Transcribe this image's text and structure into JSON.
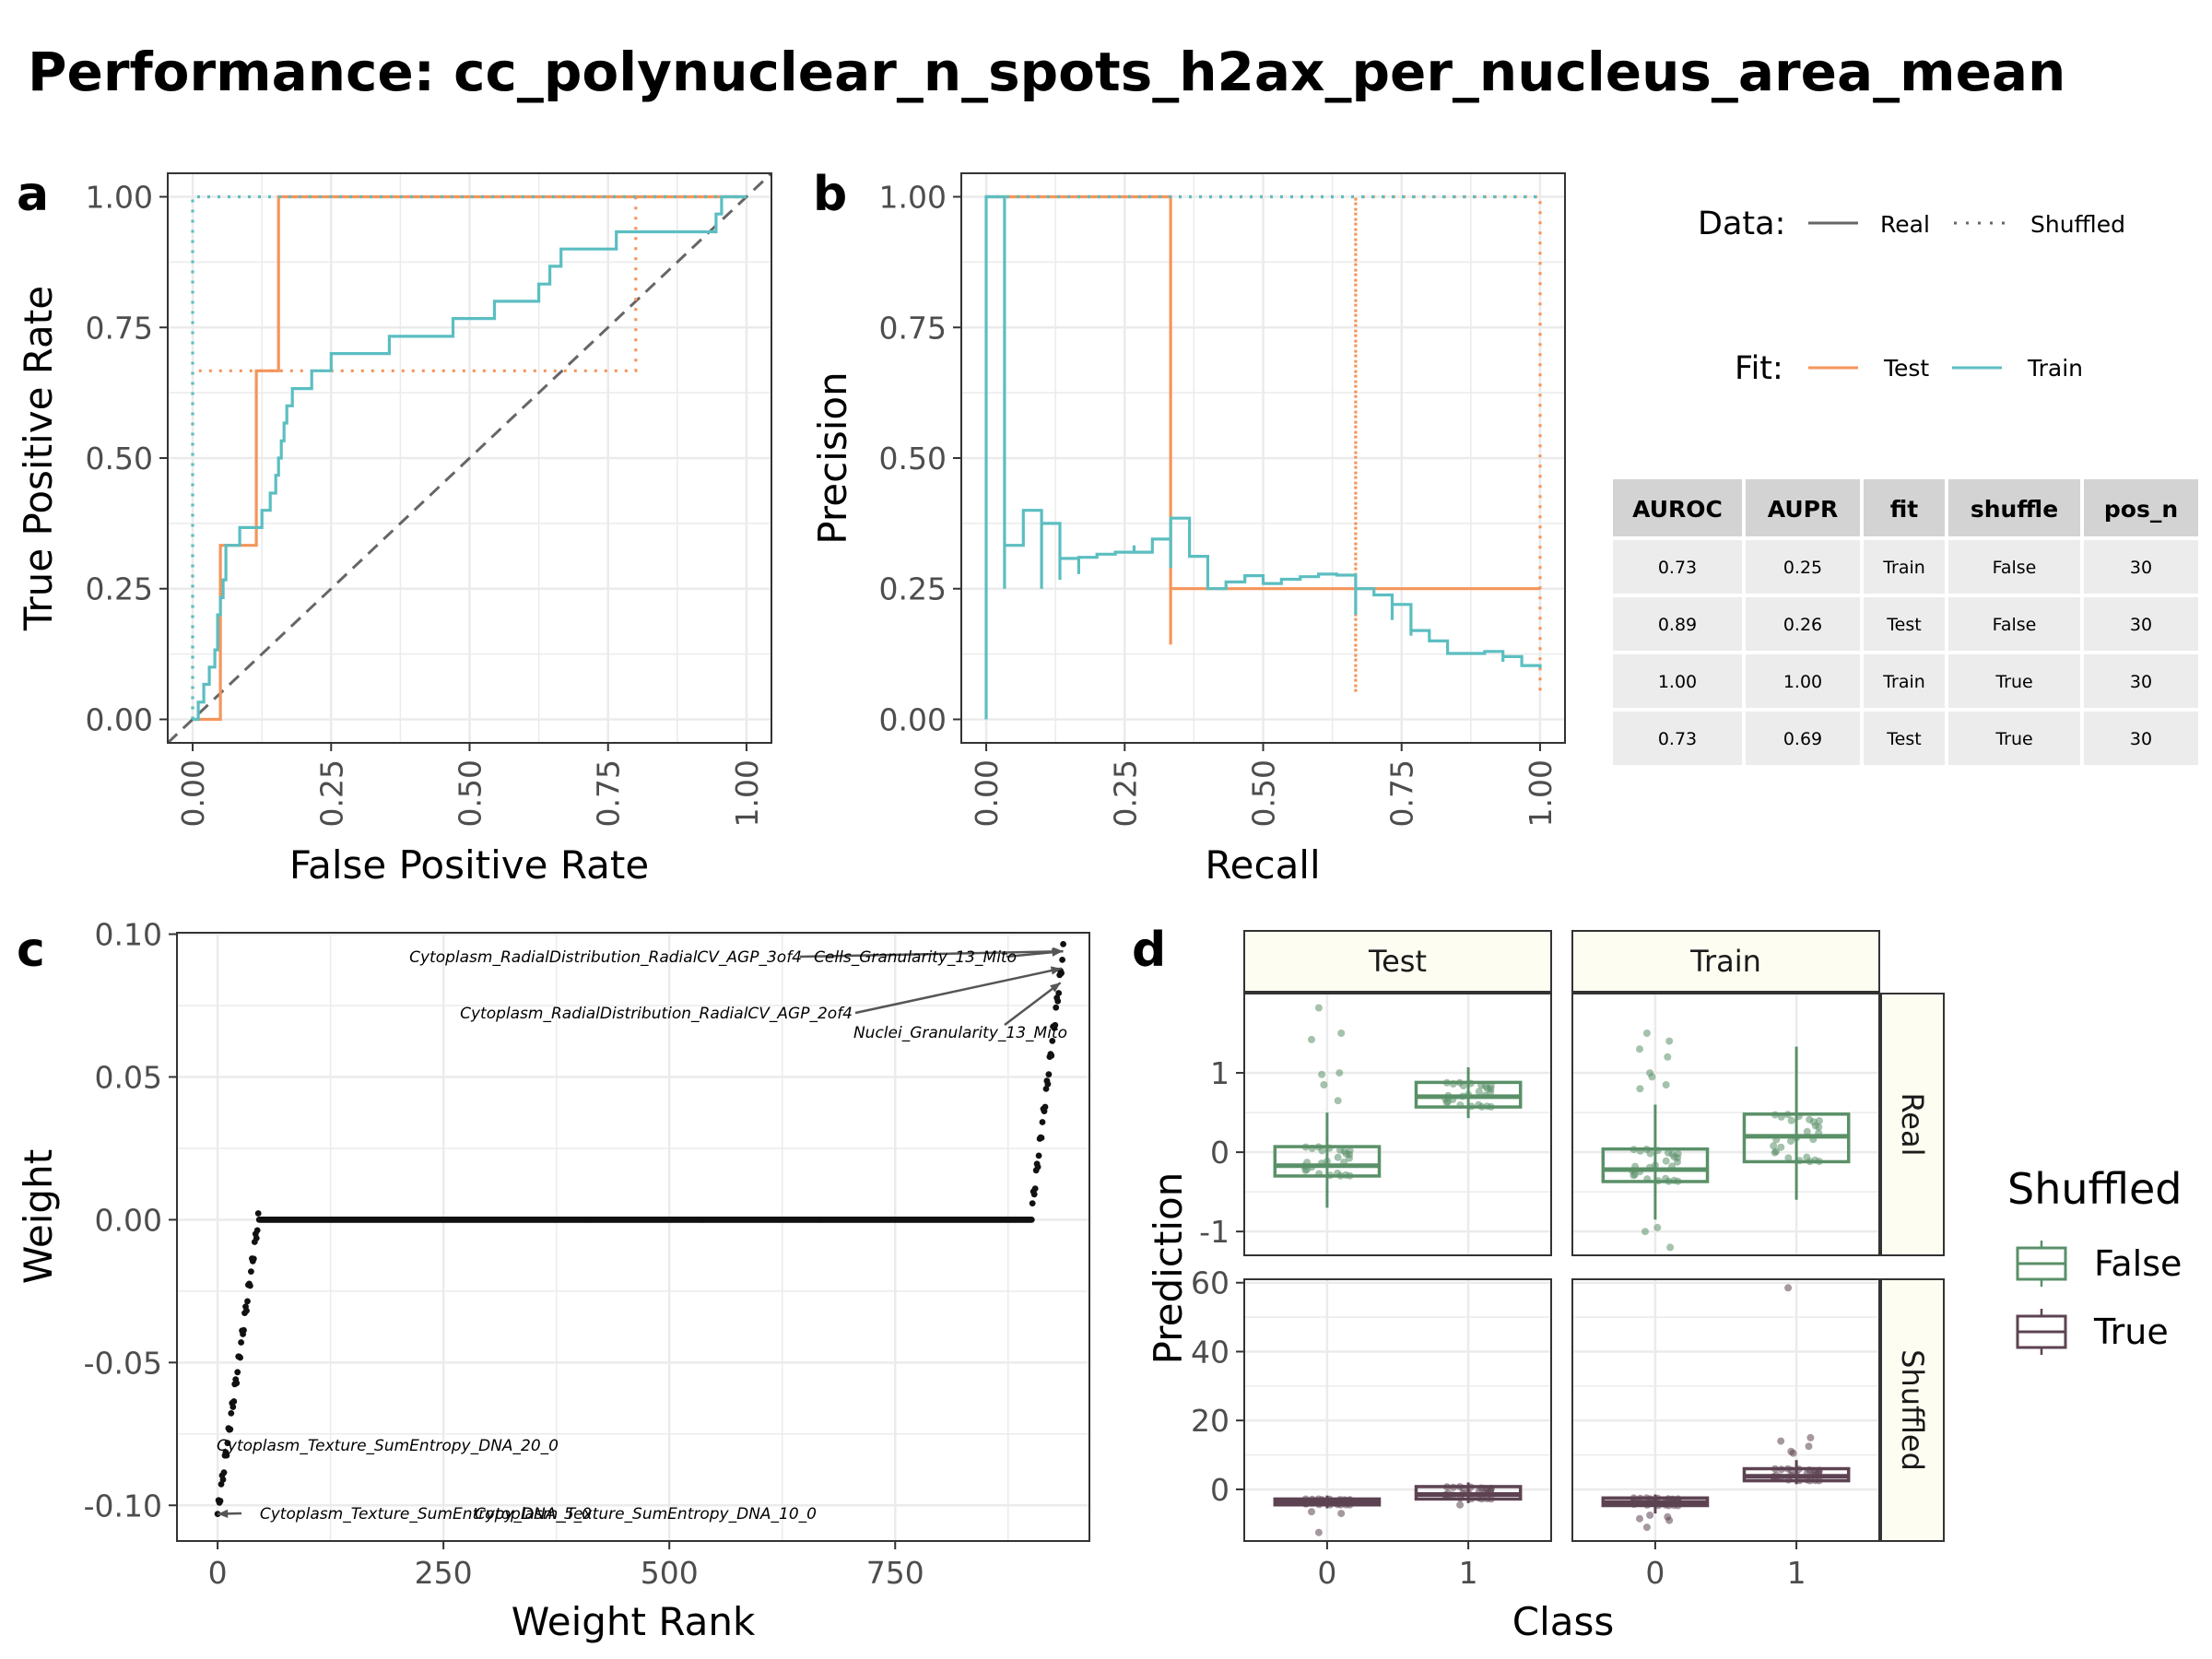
{
  "page": {
    "title": "Performance: cc_polynuclear_n_spots_h2ax_per_nucleus_area_mean"
  },
  "colors": {
    "test": "#f4955b",
    "train": "#5bbec1",
    "shuffled_false": "#5a9068",
    "shuffled_true": "#5d4352",
    "grid": "#ebebeb",
    "strip_fill": "#fdfdf2",
    "table_header": "#d3d3d3",
    "table_row": "#ececec"
  },
  "legend": {
    "data_title": "Data:",
    "data_real": "Real",
    "data_shuffled": "Shuffled",
    "fit_title": "Fit:",
    "fit_test": "Test",
    "fit_train": "Train",
    "shuffled_title": "Shuffled",
    "shuffled_false": "False",
    "shuffled_true": "True"
  },
  "table": {
    "headers": [
      "AUROC",
      "AUPR",
      "fit",
      "shuffle",
      "pos_n"
    ],
    "rows": [
      [
        "0.73",
        "0.25",
        "Train",
        "False",
        "30"
      ],
      [
        "0.89",
        "0.26",
        "Test",
        "False",
        "30"
      ],
      [
        "1.00",
        "1.00",
        "Train",
        "True",
        "30"
      ],
      [
        "0.73",
        "0.69",
        "Test",
        "True",
        "30"
      ]
    ]
  },
  "chart_data": [
    {
      "panel": "a",
      "type": "line",
      "xlabel": "False Positive Rate",
      "ylabel": "True Positive Rate",
      "xlim": [
        0,
        1
      ],
      "ylim": [
        0,
        1
      ],
      "x_ticks": [
        "0.00",
        "0.25",
        "0.50",
        "0.75",
        "1.00"
      ],
      "y_ticks": [
        "0.00",
        "0.25",
        "0.50",
        "0.75",
        "1.00"
      ],
      "diagonal": true,
      "series": [
        {
          "fit": "Test",
          "data": "Real",
          "points": [
            [
              0,
              0
            ],
            [
              0.05,
              0
            ],
            [
              0.05,
              0.333
            ],
            [
              0.115,
              0.333
            ],
            [
              0.115,
              0.667
            ],
            [
              0.155,
              0.667
            ],
            [
              0.155,
              1
            ],
            [
              1,
              1
            ]
          ]
        },
        {
          "fit": "Test",
          "data": "Shuffled",
          "points": [
            [
              0,
              0
            ],
            [
              0,
              0.667
            ],
            [
              0.8,
              0.667
            ],
            [
              0.8,
              1
            ],
            [
              1,
              1
            ]
          ]
        },
        {
          "fit": "Train",
          "data": "Real",
          "points": [
            [
              0,
              0
            ],
            [
              0.01,
              0
            ],
            [
              0.01,
              0.033
            ],
            [
              0.02,
              0.033
            ],
            [
              0.02,
              0.067
            ],
            [
              0.03,
              0.067
            ],
            [
              0.03,
              0.1
            ],
            [
              0.04,
              0.1
            ],
            [
              0.04,
              0.133
            ],
            [
              0.045,
              0.133
            ],
            [
              0.045,
              0.2
            ],
            [
              0.05,
              0.2
            ],
            [
              0.05,
              0.233
            ],
            [
              0.055,
              0.233
            ],
            [
              0.055,
              0.267
            ],
            [
              0.06,
              0.267
            ],
            [
              0.06,
              0.333
            ],
            [
              0.085,
              0.333
            ],
            [
              0.085,
              0.367
            ],
            [
              0.125,
              0.367
            ],
            [
              0.125,
              0.4
            ],
            [
              0.14,
              0.4
            ],
            [
              0.14,
              0.433
            ],
            [
              0.15,
              0.433
            ],
            [
              0.15,
              0.467
            ],
            [
              0.155,
              0.467
            ],
            [
              0.155,
              0.5
            ],
            [
              0.16,
              0.5
            ],
            [
              0.16,
              0.533
            ],
            [
              0.165,
              0.533
            ],
            [
              0.165,
              0.567
            ],
            [
              0.17,
              0.567
            ],
            [
              0.17,
              0.6
            ],
            [
              0.18,
              0.6
            ],
            [
              0.18,
              0.633
            ],
            [
              0.215,
              0.633
            ],
            [
              0.215,
              0.667
            ],
            [
              0.25,
              0.667
            ],
            [
              0.25,
              0.7
            ],
            [
              0.355,
              0.7
            ],
            [
              0.355,
              0.733
            ],
            [
              0.47,
              0.733
            ],
            [
              0.47,
              0.767
            ],
            [
              0.545,
              0.767
            ],
            [
              0.545,
              0.8
            ],
            [
              0.625,
              0.8
            ],
            [
              0.625,
              0.833
            ],
            [
              0.645,
              0.833
            ],
            [
              0.645,
              0.867
            ],
            [
              0.665,
              0.867
            ],
            [
              0.665,
              0.9
            ],
            [
              0.765,
              0.9
            ],
            [
              0.765,
              0.933
            ],
            [
              0.945,
              0.933
            ],
            [
              0.945,
              0.967
            ],
            [
              0.955,
              0.967
            ],
            [
              0.955,
              1
            ],
            [
              1,
              1
            ]
          ]
        },
        {
          "fit": "Train",
          "data": "Shuffled",
          "points": [
            [
              0,
              0
            ],
            [
              0,
              1
            ],
            [
              1,
              1
            ]
          ]
        }
      ]
    },
    {
      "panel": "b",
      "type": "line",
      "xlabel": "Recall",
      "ylabel": "Precision",
      "xlim": [
        0,
        1
      ],
      "ylim": [
        0,
        1
      ],
      "x_ticks": [
        "0.00",
        "0.25",
        "0.50",
        "0.75",
        "1.00"
      ],
      "y_ticks": [
        "0.00",
        "0.25",
        "0.50",
        "0.75",
        "1.00"
      ],
      "series": [
        {
          "fit": "Test",
          "data": "Real",
          "points": [
            [
              0,
              1
            ],
            [
              0.333,
              1
            ],
            [
              0.333,
              0.143
            ],
            [
              0.333,
              0.25
            ],
            [
              1,
              0.25
            ]
          ]
        },
        {
          "fit": "Test",
          "data": "Shuffled",
          "points": [
            [
              0,
              1
            ],
            [
              0.667,
              1
            ],
            [
              0.667,
              0.05
            ],
            [
              0.667,
              1
            ],
            [
              1,
              1
            ],
            [
              1,
              0.05
            ]
          ]
        },
        {
          "fit": "Train",
          "data": "Real",
          "points": [
            [
              0,
              0
            ],
            [
              0,
              1
            ],
            [
              0.033,
              1
            ],
            [
              0.033,
              0.25
            ],
            [
              0.033,
              0.333
            ],
            [
              0.067,
              0.333
            ],
            [
              0.067,
              0.4
            ],
            [
              0.1,
              0.4
            ],
            [
              0.1,
              0.25
            ],
            [
              0.1,
              0.375
            ],
            [
              0.133,
              0.375
            ],
            [
              0.133,
              0.267
            ],
            [
              0.133,
              0.308
            ],
            [
              0.167,
              0.308
            ],
            [
              0.167,
              0.278
            ],
            [
              0.167,
              0.31
            ],
            [
              0.2,
              0.31
            ],
            [
              0.2,
              0.316
            ],
            [
              0.233,
              0.316
            ],
            [
              0.233,
              0.32
            ],
            [
              0.267,
              0.32
            ],
            [
              0.267,
              0.333
            ],
            [
              0.267,
              0.32
            ],
            [
              0.3,
              0.32
            ],
            [
              0.3,
              0.345
            ],
            [
              0.333,
              0.345
            ],
            [
              0.333,
              0.357
            ],
            [
              0.333,
              0.29
            ],
            [
              0.333,
              0.385
            ],
            [
              0.367,
              0.385
            ],
            [
              0.367,
              0.35
            ],
            [
              0.367,
              0.312
            ],
            [
              0.4,
              0.312
            ],
            [
              0.4,
              0.25
            ],
            [
              0.433,
              0.25
            ],
            [
              0.433,
              0.263
            ],
            [
              0.467,
              0.263
            ],
            [
              0.467,
              0.275
            ],
            [
              0.5,
              0.275
            ],
            [
              0.5,
              0.26
            ],
            [
              0.533,
              0.26
            ],
            [
              0.533,
              0.268
            ],
            [
              0.567,
              0.268
            ],
            [
              0.567,
              0.273
            ],
            [
              0.6,
              0.273
            ],
            [
              0.6,
              0.278
            ],
            [
              0.633,
              0.278
            ],
            [
              0.633,
              0.276
            ],
            [
              0.667,
              0.276
            ],
            [
              0.667,
              0.2
            ],
            [
              0.667,
              0.25
            ],
            [
              0.7,
              0.25
            ],
            [
              0.7,
              0.238
            ],
            [
              0.733,
              0.238
            ],
            [
              0.733,
              0.19
            ],
            [
              0.733,
              0.22
            ],
            [
              0.767,
              0.22
            ],
            [
              0.767,
              0.16
            ],
            [
              0.767,
              0.17
            ],
            [
              0.8,
              0.17
            ],
            [
              0.8,
              0.15
            ],
            [
              0.833,
              0.15
            ],
            [
              0.833,
              0.126
            ],
            [
              0.9,
              0.126
            ],
            [
              0.9,
              0.13
            ],
            [
              0.933,
              0.13
            ],
            [
              0.933,
              0.11
            ],
            [
              0.933,
              0.12
            ],
            [
              0.967,
              0.12
            ],
            [
              0.967,
              0.103
            ],
            [
              1,
              0.103
            ],
            [
              1,
              0.098
            ]
          ]
        },
        {
          "fit": "Train",
          "data": "Shuffled",
          "points": [
            [
              0,
              1
            ],
            [
              1,
              1
            ]
          ]
        }
      ]
    },
    {
      "panel": "c",
      "type": "scatter",
      "xlabel": "Weight Rank",
      "ylabel": "Weight",
      "xlim": [
        -45,
        965
      ],
      "ylim": [
        -0.1125,
        0.1005
      ],
      "x_ticks": [
        "0",
        "250",
        "500",
        "750"
      ],
      "y_ticks": [
        "0.10",
        "0.05",
        "0.00",
        "-0.05",
        "-0.10"
      ],
      "n_points": 937,
      "segments": [
        {
          "from_rank": 0,
          "to_rank": 45,
          "from_weight": -0.103,
          "to_weight": 0.0
        },
        {
          "from_rank": 46,
          "to_rank": 901,
          "from_weight": 0.0,
          "to_weight": 0.0
        },
        {
          "from_rank": 902,
          "to_rank": 936,
          "from_weight": 0.005,
          "to_weight": 0.094
        }
      ],
      "annotations": [
        {
          "label": "Cytoplasm_RadialDistribution_RadialCV_AGP_3of4",
          "rank": 936,
          "weight": 0.094
        },
        {
          "label": "Cells_Granularity_13_Mito",
          "rank": 935,
          "weight": 0.094
        },
        {
          "label": "Cytoplasm_RadialDistribution_RadialCV_AGP_2of4",
          "rank": 934,
          "weight": 0.088
        },
        {
          "label": "Nuclei_Granularity_13_Mito",
          "rank": 933,
          "weight": 0.083
        },
        {
          "label": "Cytoplasm_Texture_SumEntropy_DNA_20_0",
          "rank": 1,
          "weight": -0.091
        },
        {
          "label": "Cytoplasm_Texture_SumEntropy_DNA_5_0",
          "rank": 0,
          "weight": -0.103
        },
        {
          "label": "Cytoplasm_Texture_SumEntropy_DNA_10_0",
          "rank": 2,
          "weight": -0.103
        }
      ]
    },
    {
      "panel": "d",
      "type": "box",
      "xlabel": "Class",
      "ylabel": "Prediction",
      "categories": [
        "0",
        "1"
      ],
      "facet_cols": [
        "Test",
        "Train"
      ],
      "facet_rows": [
        "Real",
        "Shuffled"
      ],
      "rows": [
        {
          "name": "Real",
          "ylim": [
            -1.3,
            2.0
          ],
          "y_ticks": [
            1,
            0,
            -1
          ],
          "y_tick_labels": [
            "1",
            "0",
            "-1"
          ],
          "panels": [
            {
              "fit": "Test",
              "boxes": [
                {
                  "class": "0",
                  "lower": -0.7,
                  "q1": -0.3,
                  "median": -0.17,
                  "q3": 0.07,
                  "upper": 0.5,
                  "outliers": [
                    1.82,
                    1.5,
                    1.42,
                    1.0,
                    0.98,
                    0.85,
                    0.65
                  ]
                },
                {
                  "class": "1",
                  "lower": 0.43,
                  "q1": 0.57,
                  "median": 0.7,
                  "q3": 0.88,
                  "upper": 1.07,
                  "outliers": []
                }
              ]
            },
            {
              "fit": "Train",
              "boxes": [
                {
                  "class": "0",
                  "lower": -0.85,
                  "q1": -0.37,
                  "median": -0.22,
                  "q3": 0.04,
                  "upper": 0.6,
                  "outliers": [
                    1.5,
                    1.4,
                    1.3,
                    1.2,
                    1.0,
                    0.95,
                    0.85,
                    0.8,
                    -1.2,
                    -1.0,
                    -0.95
                  ]
                },
                {
                  "class": "1",
                  "lower": -0.6,
                  "q1": -0.12,
                  "median": 0.2,
                  "q3": 0.48,
                  "upper": 1.33,
                  "outliers": []
                }
              ]
            }
          ]
        },
        {
          "name": "Shuffled",
          "ylim": [
            -15,
            61
          ],
          "y_ticks": [
            60,
            40,
            20,
            0
          ],
          "y_tick_labels": [
            "60",
            "40",
            "20",
            "0"
          ],
          "panels": [
            {
              "fit": "Test",
              "boxes": [
                {
                  "class": "0",
                  "lower": -5.5,
                  "q1": -4.5,
                  "median": -3.8,
                  "q3": -2.8,
                  "upper": -1.8,
                  "outliers": [
                    -12.5,
                    -7,
                    -6.5
                  ]
                },
                {
                  "class": "1",
                  "lower": -4,
                  "q1": -2.8,
                  "median": -1.5,
                  "q3": 0.8,
                  "upper": 2.0,
                  "outliers": [
                    -4.5
                  ]
                }
              ]
            },
            {
              "fit": "Train",
              "boxes": [
                {
                  "class": "0",
                  "lower": -7,
                  "q1": -4.7,
                  "median": -3.8,
                  "q3": -2.5,
                  "upper": -1.5,
                  "outliers": [
                    -11,
                    -9,
                    -8.5,
                    -8,
                    -7.5
                  ]
                },
                {
                  "class": "1",
                  "lower": 1.5,
                  "q1": 2.5,
                  "median": 3.8,
                  "q3": 6.0,
                  "upper": 8.5,
                  "outliers": [
                    58.5,
                    15,
                    14,
                    12.5,
                    11,
                    10.5
                  ]
                }
              ]
            }
          ]
        }
      ]
    }
  ]
}
